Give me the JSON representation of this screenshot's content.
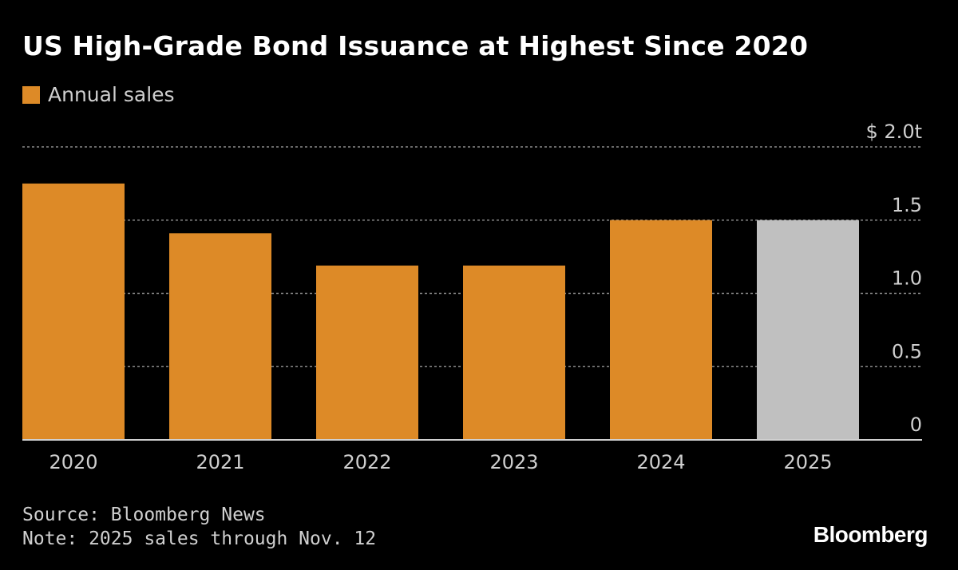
{
  "title": "US High-Grade Bond Issuance at Highest Since 2020",
  "legend": {
    "label": "Annual sales",
    "color": "#dd8a27"
  },
  "source": "Source: Bloomberg News",
  "note": "Note: 2025 sales through Nov. 12",
  "brand": "Bloomberg",
  "chart_data": {
    "type": "bar",
    "categories": [
      "2020",
      "2021",
      "2022",
      "2023",
      "2024",
      "2025"
    ],
    "series": [
      {
        "name": "Annual sales",
        "values": [
          1.75,
          1.41,
          1.19,
          1.19,
          1.5,
          1.5
        ]
      }
    ],
    "bar_colors": [
      "#dd8a27",
      "#dd8a27",
      "#dd8a27",
      "#dd8a27",
      "#dd8a27",
      "#c0c0c0"
    ],
    "ylim": [
      0,
      2.0
    ],
    "yticks": [
      0,
      0.5,
      1.0,
      1.5,
      2.0
    ],
    "ytick_labels": [
      "0",
      "0.5",
      "1.0",
      "1.5",
      "$ 2.0t"
    ],
    "grid": true,
    "axis_position": "right"
  }
}
